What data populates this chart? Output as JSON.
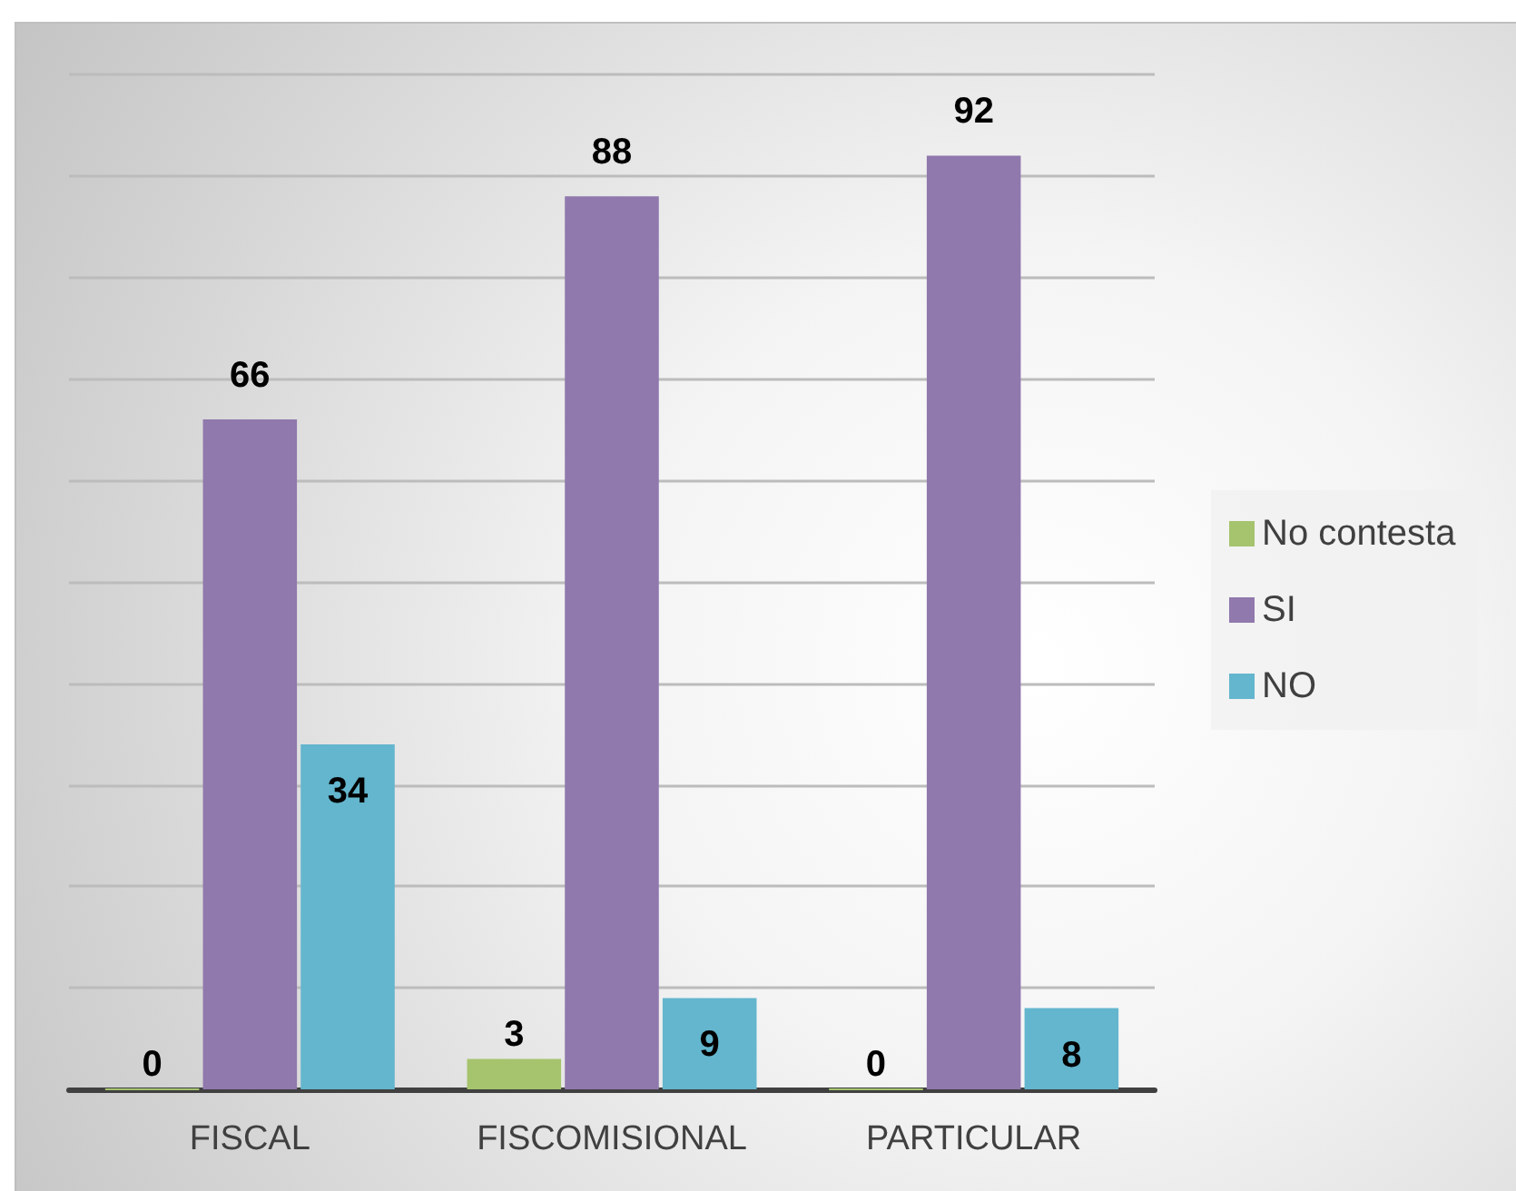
{
  "chart_data": {
    "type": "bar",
    "categories": [
      "FISCAL",
      "FISCOMISIONAL",
      "PARTICULAR"
    ],
    "series": [
      {
        "name": "No contesta",
        "color": "#a6c46e",
        "values": [
          0,
          3,
          0
        ]
      },
      {
        "name": "SI",
        "color": "#9079ad",
        "values": [
          66,
          88,
          92
        ]
      },
      {
        "name": "NO",
        "color": "#63b6cd",
        "values": [
          34,
          9,
          8
        ]
      }
    ],
    "ylim": [
      0,
      100
    ],
    "yticks": [
      0,
      10,
      20,
      30,
      40,
      50,
      60,
      70,
      80,
      90,
      100
    ],
    "grid": "y",
    "legend": "right",
    "tick_labels": "x",
    "data_labels": true
  }
}
